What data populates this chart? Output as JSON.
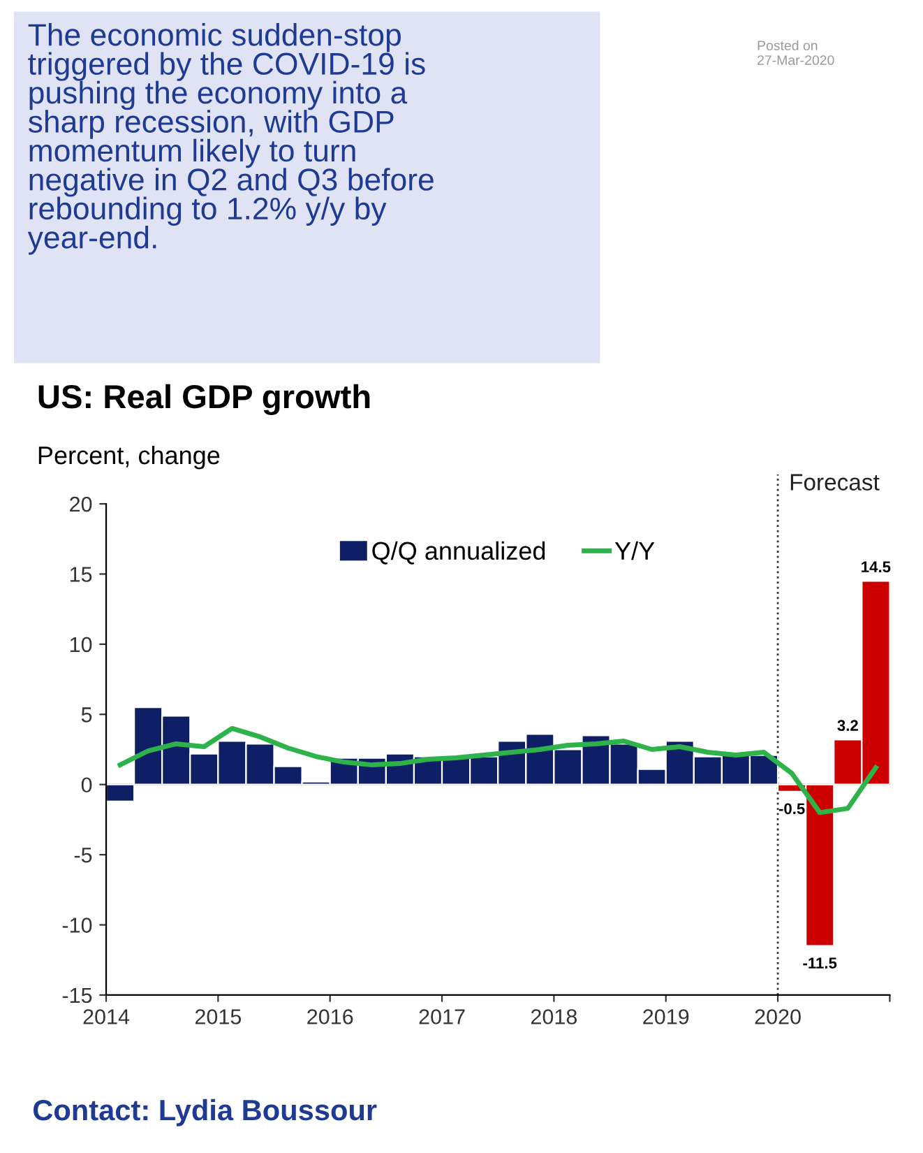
{
  "chart_data": {
    "type": "bar",
    "title": "US: Real GDP growth",
    "ylabel": "Percent, change",
    "annotations": [
      "The economic sudden-stop\ntriggered by the COVID-19 is\npushing the economy into a\nsharp recession, with GDP\nmomentum likely to turn\nnegative in Q2 and Q3 before\nrebounding to 1.2% y/y by\nyear-end.",
      "Posted on\n27-Mar-2020",
      "Contact: Lydia Boussour"
    ],
    "x": [
      2014.125,
      2014.375,
      2014.625,
      2014.875,
      2015.125,
      2015.375,
      2015.625,
      2015.875,
      2016.125,
      2016.375,
      2016.625,
      2016.875,
      2017.125,
      2017.375,
      2017.625,
      2017.875,
      2018.125,
      2018.375,
      2018.625,
      2018.875,
      2019.125,
      2019.375,
      2019.625,
      2019.875,
      2020.125,
      2020.375,
      2020.625,
      2020.875
    ],
    "series": [
      {
        "name": "Q/Q annualized",
        "color": "#0f1f66",
        "colors": [
          "#0f1f66",
          "#0f1f66",
          "#0f1f66",
          "#0f1f66",
          "#0f1f66",
          "#0f1f66",
          "#0f1f66",
          "#0f1f66",
          "#0f1f66",
          "#0f1f66",
          "#0f1f66",
          "#0f1f66",
          "#0f1f66",
          "#0f1f66",
          "#0f1f66",
          "#0f1f66",
          "#0f1f66",
          "#0f1f66",
          "#0f1f66",
          "#0f1f66",
          "#0f1f66",
          "#0f1f66",
          "#0f1f66",
          "#0f1f66",
          "#cc0000",
          "#cc0000",
          "#cc0000",
          "#cc0000"
        ],
        "values": [
          -1.2,
          5.5,
          4.9,
          2.2,
          3.1,
          2.9,
          1.3,
          0.2,
          1.9,
          1.9,
          2.2,
          2.0,
          2.0,
          2.0,
          3.1,
          3.6,
          2.5,
          3.5,
          2.9,
          1.1,
          3.1,
          2.0,
          2.1,
          2.1,
          -0.5,
          -11.5,
          3.2,
          14.5
        ],
        "value_labels": [
          null,
          null,
          null,
          null,
          null,
          null,
          null,
          null,
          null,
          null,
          null,
          null,
          null,
          null,
          null,
          null,
          null,
          null,
          null,
          null,
          null,
          null,
          null,
          null,
          "-0.5",
          "-11.5",
          "3.2",
          "14.5"
        ]
      },
      {
        "name": "Y/Y",
        "type": "line",
        "color": "#2db34a",
        "values": [
          1.4,
          2.4,
          2.9,
          2.7,
          4.0,
          3.4,
          2.6,
          2.0,
          1.6,
          1.4,
          1.5,
          1.8,
          1.9,
          2.1,
          2.3,
          2.5,
          2.8,
          2.9,
          3.1,
          2.5,
          2.7,
          2.3,
          2.1,
          2.3,
          0.8,
          -2.0,
          -1.7,
          1.2
        ]
      }
    ],
    "xlim": [
      2014,
      2021
    ],
    "xticks": [
      2014,
      2015,
      2016,
      2017,
      2018,
      2019,
      2020,
      {
        "value": 2021,
        "label": null
      }
    ],
    "ylim": [
      -15,
      20
    ],
    "yticks": [
      -15,
      -10,
      -5,
      0,
      5,
      10,
      15,
      20
    ],
    "ref_lines": [
      {
        "axis": "x",
        "value": 2020,
        "label": "Forecast",
        "line_style": "dotted",
        "color": "#333333"
      }
    ],
    "grid": false,
    "legend": "top",
    "marker": "none",
    "line_style": "solid"
  }
}
